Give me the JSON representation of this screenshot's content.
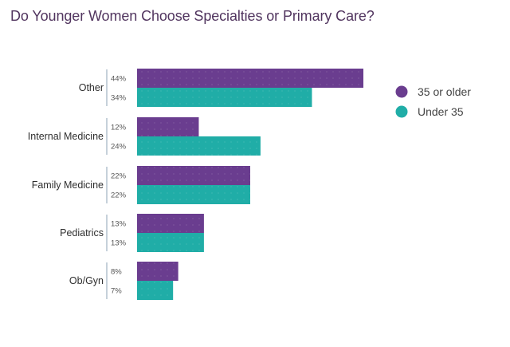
{
  "title": "Do Younger Women Choose Specialties or Primary Care?",
  "chart_data": {
    "type": "bar",
    "orientation": "horizontal",
    "title": "Do Younger Women Choose Specialties or Primary Care?",
    "categories": [
      "Other",
      "Internal Medicine",
      "Family Medicine",
      "Pediatrics",
      "Ob/Gyn"
    ],
    "series": [
      {
        "name": "35 or older",
        "color": "#6a3d8f",
        "values": [
          44,
          12,
          22,
          13,
          8
        ],
        "labels": [
          "44%",
          "12%",
          "22%",
          "13%",
          "8%"
        ]
      },
      {
        "name": "Under 35",
        "color": "#20ada7",
        "values": [
          34,
          24,
          22,
          13,
          7
        ],
        "labels": [
          "34%",
          "24%",
          "22%",
          "13%",
          "7%"
        ]
      }
    ],
    "unit": "%",
    "xlim": [
      0,
      44
    ],
    "legend": "right",
    "grid": false
  }
}
